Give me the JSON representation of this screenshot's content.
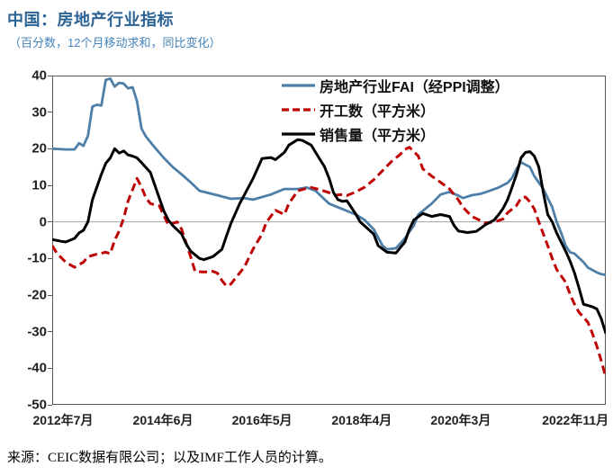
{
  "page": {
    "title": "中国：房地产行业指标",
    "subtitle": "（百分数，12个月移动求和，同比变化）",
    "source": "来源：CEIC数据有限公司；以及IMF工作人员的计算。"
  },
  "chart_data": {
    "type": "line",
    "title": "中国：房地产行业指标",
    "subtitle": "（百分数，12个月移动求和，同比变化）",
    "x_unit": "month index, 0 = 2012年7月 … 124 = 2022年11月",
    "xlim": [
      0,
      124
    ],
    "ylim": [
      -50,
      40
    ],
    "y_ticks": [
      40,
      30,
      20,
      10,
      0,
      -10,
      -20,
      -30,
      -40,
      -50
    ],
    "x_ticks": [
      {
        "label": "2012年7月",
        "pos": 0.0195
      },
      {
        "label": "2014年6月",
        "pos": 0.2
      },
      {
        "label": "2016年5月",
        "pos": 0.379
      },
      {
        "label": "2018年4月",
        "pos": 0.559
      },
      {
        "label": "2020年3月",
        "pos": 0.738
      },
      {
        "label": "2022年11月",
        "pos": 0.945
      }
    ],
    "grid": "horizontal zero line only, full outer border, outward y tick marks",
    "legend_position": "inside plot, top center-right, vertical stack",
    "colors": {
      "fai": "#4E7FA8",
      "starts": "#BF0000",
      "sales": "#000000",
      "border": "#595959",
      "zero_line": "#A6A6A6"
    },
    "series": [
      {
        "id": "fai",
        "name": "房地产行业FAI（经PPI调整）",
        "color": "#4E7FA8",
        "style": "solid",
        "points": [
          [
            0,
            20
          ],
          [
            3,
            19.8
          ],
          [
            5,
            19.8
          ],
          [
            6,
            21.5
          ],
          [
            7,
            20.8
          ],
          [
            8,
            23.5
          ],
          [
            9,
            31.5
          ],
          [
            10,
            32
          ],
          [
            11,
            31.8
          ],
          [
            12,
            38.8
          ],
          [
            13,
            39.2
          ],
          [
            14,
            37
          ],
          [
            15,
            38
          ],
          [
            16,
            37.8
          ],
          [
            17,
            36.5
          ],
          [
            18,
            36.8
          ],
          [
            19,
            33
          ],
          [
            20,
            25.5
          ],
          [
            21,
            23.3
          ],
          [
            23,
            20.3
          ],
          [
            25,
            17.5
          ],
          [
            27,
            15
          ],
          [
            29,
            13
          ],
          [
            31,
            10.8
          ],
          [
            33,
            8.5
          ],
          [
            37,
            7.3
          ],
          [
            40,
            6.3
          ],
          [
            43,
            6.5
          ],
          [
            45,
            6.1
          ],
          [
            49,
            7.5
          ],
          [
            52,
            9
          ],
          [
            55,
            9
          ],
          [
            57,
            9.4
          ],
          [
            59,
            8.5
          ],
          [
            62,
            5
          ],
          [
            65,
            3.5
          ],
          [
            68,
            2
          ],
          [
            70,
            0.5
          ],
          [
            72,
            -2
          ],
          [
            74,
            -6.5
          ],
          [
            75,
            -7.5
          ],
          [
            77,
            -7.2
          ],
          [
            79,
            -4.5
          ],
          [
            81,
            -1
          ],
          [
            82,
            2
          ],
          [
            85,
            5
          ],
          [
            87,
            7.5
          ],
          [
            89,
            8.2
          ],
          [
            91,
            7.2
          ],
          [
            92,
            6.5
          ],
          [
            94,
            7.3
          ],
          [
            96,
            7.7
          ],
          [
            98,
            8.5
          ],
          [
            100,
            9.4
          ],
          [
            102,
            10.7
          ],
          [
            103,
            12
          ],
          [
            104,
            14.5
          ],
          [
            105,
            16.3
          ],
          [
            107,
            15
          ],
          [
            108,
            12.5
          ],
          [
            110,
            9
          ],
          [
            112,
            4
          ],
          [
            113,
            0
          ],
          [
            114,
            -3
          ],
          [
            115,
            -6.5
          ],
          [
            116,
            -8.3
          ],
          [
            117,
            -8.7
          ],
          [
            119,
            -11
          ],
          [
            120,
            -12.5
          ],
          [
            122,
            -13.8
          ],
          [
            123,
            -14.3
          ],
          [
            124,
            -14.5
          ]
        ]
      },
      {
        "id": "starts",
        "name": "开工数（平方米）",
        "color": "#BF0000",
        "style": "dashed",
        "points": [
          [
            0,
            -6.5
          ],
          [
            1,
            -8.5
          ],
          [
            3,
            -11
          ],
          [
            5,
            -12.4
          ],
          [
            7,
            -11
          ],
          [
            8,
            -9.5
          ],
          [
            10,
            -8.8
          ],
          [
            12,
            -8.3
          ],
          [
            13,
            -8.7
          ],
          [
            14,
            -5
          ],
          [
            15,
            -2.5
          ],
          [
            16,
            1
          ],
          [
            17,
            5.7
          ],
          [
            19,
            11.9
          ],
          [
            20,
            9.5
          ],
          [
            21,
            6.5
          ],
          [
            22,
            5
          ],
          [
            24,
            4.4
          ],
          [
            26,
            -0.8
          ],
          [
            28,
            0
          ],
          [
            29,
            -2
          ],
          [
            31,
            -9.5
          ],
          [
            32,
            -13.5
          ],
          [
            34,
            -13.7
          ],
          [
            36,
            -13.5
          ],
          [
            37,
            -14
          ],
          [
            38,
            -16
          ],
          [
            39,
            -17.5
          ],
          [
            40,
            -17
          ],
          [
            43,
            -12.4
          ],
          [
            45,
            -7.4
          ],
          [
            47,
            -3.3
          ],
          [
            48,
            0
          ],
          [
            50,
            3.2
          ],
          [
            52,
            2
          ],
          [
            53,
            5
          ],
          [
            55,
            8.5
          ],
          [
            57,
            9.2
          ],
          [
            58,
            9.4
          ],
          [
            60,
            8.8
          ],
          [
            62,
            8
          ],
          [
            63,
            7.3
          ],
          [
            65,
            7.5
          ],
          [
            66,
            7.2
          ],
          [
            68,
            8.2
          ],
          [
            70,
            9.5
          ],
          [
            72,
            11.5
          ],
          [
            74,
            14
          ],
          [
            76,
            16.5
          ],
          [
            78,
            18.5
          ],
          [
            79,
            19.8
          ],
          [
            80,
            20.4
          ],
          [
            82,
            18
          ],
          [
            83,
            14.5
          ],
          [
            85,
            12.5
          ],
          [
            87,
            10.8
          ],
          [
            89,
            9
          ],
          [
            91,
            6
          ],
          [
            92,
            4
          ],
          [
            94,
            1.5
          ],
          [
            96,
            0.3
          ],
          [
            97,
            -0.3
          ],
          [
            99,
            0
          ],
          [
            101,
            0.8
          ],
          [
            102,
            2.5
          ],
          [
            104,
            4.5
          ],
          [
            105,
            6.5
          ],
          [
            106,
            6.8
          ],
          [
            107,
            5.5
          ],
          [
            108,
            3.5
          ],
          [
            109,
            0
          ],
          [
            111,
            -6.5
          ],
          [
            112,
            -10
          ],
          [
            113,
            -13
          ],
          [
            115,
            -16.5
          ],
          [
            116,
            -19.8
          ],
          [
            117,
            -22.5
          ],
          [
            118,
            -24.7
          ],
          [
            119,
            -26
          ],
          [
            120,
            -27.5
          ],
          [
            121,
            -30.5
          ],
          [
            122,
            -34
          ],
          [
            123,
            -38
          ],
          [
            124,
            -42.5
          ]
        ]
      },
      {
        "id": "sales",
        "name": "销售量（平方米）",
        "color": "#000000",
        "style": "solid",
        "points": [
          [
            0,
            -4.8
          ],
          [
            2,
            -5.3
          ],
          [
            3,
            -5.5
          ],
          [
            5,
            -4.5
          ],
          [
            6,
            -3
          ],
          [
            7,
            -2.3
          ],
          [
            8,
            0
          ],
          [
            9,
            6
          ],
          [
            10,
            9.5
          ],
          [
            11,
            13
          ],
          [
            12,
            16
          ],
          [
            13,
            17.5
          ],
          [
            14,
            20
          ],
          [
            15,
            18.8
          ],
          [
            16,
            19.4
          ],
          [
            17,
            18.3
          ],
          [
            18,
            18
          ],
          [
            19,
            17.5
          ],
          [
            20,
            16.2
          ],
          [
            22,
            13.5
          ],
          [
            24,
            6.5
          ],
          [
            25,
            3
          ],
          [
            26,
            0.5
          ],
          [
            27,
            -1
          ],
          [
            29,
            -3.3
          ],
          [
            30,
            -6
          ],
          [
            31,
            -8
          ],
          [
            33,
            -10
          ],
          [
            34,
            -10.3
          ],
          [
            36,
            -9.5
          ],
          [
            38,
            -7.5
          ],
          [
            39,
            -4
          ],
          [
            40,
            -0.5
          ],
          [
            42,
            5
          ],
          [
            45,
            11.9
          ],
          [
            47,
            17.3
          ],
          [
            49,
            17.6
          ],
          [
            50,
            17
          ],
          [
            52,
            19
          ],
          [
            53,
            21
          ],
          [
            55,
            22.5
          ],
          [
            56,
            22.3
          ],
          [
            58,
            21
          ],
          [
            60,
            17
          ],
          [
            61,
            15.1
          ],
          [
            62,
            12
          ],
          [
            63,
            8
          ],
          [
            64,
            6.1
          ],
          [
            65,
            5.6
          ],
          [
            66,
            5.8
          ],
          [
            68,
            2.1
          ],
          [
            69,
            0
          ],
          [
            72,
            -3.3
          ],
          [
            73,
            -6.5
          ],
          [
            75,
            -8.3
          ],
          [
            77,
            -8.5
          ],
          [
            79,
            -5.5
          ],
          [
            80,
            -2
          ],
          [
            81,
            0.5
          ],
          [
            83,
            2.3
          ],
          [
            85,
            1.5
          ],
          [
            87,
            2
          ],
          [
            89,
            1.5
          ],
          [
            90,
            -1
          ],
          [
            91,
            -2.5
          ],
          [
            93,
            -2.9
          ],
          [
            95,
            -2.6
          ],
          [
            97,
            -0.8
          ],
          [
            99,
            0.5
          ],
          [
            100,
            2
          ],
          [
            101,
            3.7
          ],
          [
            102,
            6.1
          ],
          [
            103,
            9.4
          ],
          [
            104,
            13
          ],
          [
            105,
            17.5
          ],
          [
            106,
            19
          ],
          [
            107,
            19.2
          ],
          [
            108,
            18
          ],
          [
            109,
            15
          ],
          [
            110,
            8
          ],
          [
            111,
            2
          ],
          [
            112,
            0
          ],
          [
            113,
            -3
          ],
          [
            115,
            -8
          ],
          [
            116,
            -10.7
          ],
          [
            117,
            -14
          ],
          [
            118,
            -18
          ],
          [
            119,
            -22.5
          ],
          [
            121,
            -23.2
          ],
          [
            122,
            -23.8
          ],
          [
            123,
            -26.5
          ],
          [
            124,
            -30.5
          ]
        ]
      }
    ]
  }
}
